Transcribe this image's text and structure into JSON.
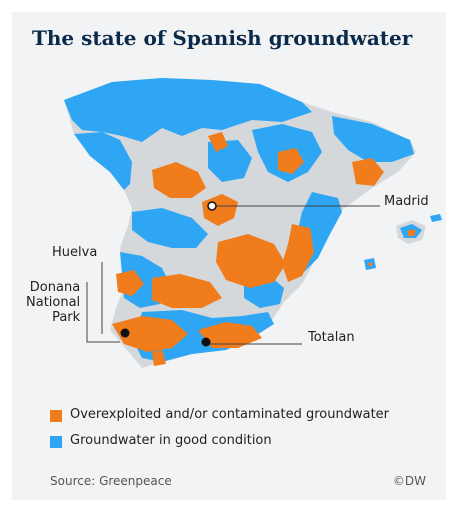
{
  "title": "The state of Spanish groundwater",
  "colors": {
    "overexploited": "#f07c1b",
    "good": "#2ea6f4",
    "land": "#d5d8db",
    "title": "#0b2a4a"
  },
  "places": {
    "madrid": "Madrid",
    "huelva": "Huelva",
    "donana": "Donana\nNational\nPark",
    "totalan": "Totalan"
  },
  "legend": [
    {
      "label": "Overexploited and/or contaminated groundwater"
    },
    {
      "label": "Groundwater in good condition"
    }
  ],
  "source": "Source: Greenpeace",
  "credit": "©DW"
}
